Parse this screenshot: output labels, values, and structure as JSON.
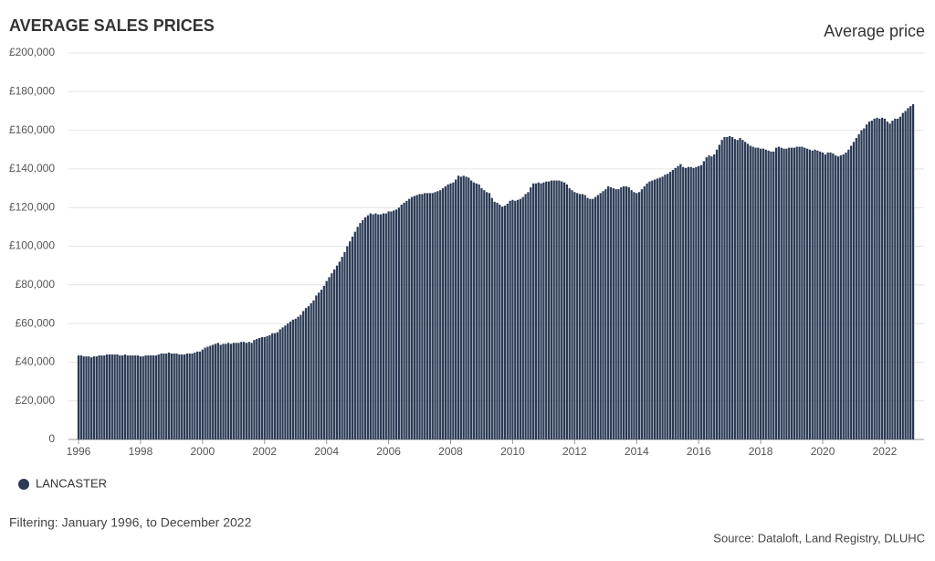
{
  "chart_data": {
    "type": "bar",
    "title": "AVERAGE SALES PRICES",
    "subtitle": "Average price",
    "filter_note": "Filtering: January 1996, to December 2022",
    "source": "Source: Dataloft, Land Registry, DLUHC",
    "color": "#2b3a55",
    "grid": true,
    "legend": "bottom-left",
    "ylim": [
      0,
      200000
    ],
    "yticks": [
      0,
      {
        "value": 20000,
        "label": "£20,000"
      },
      {
        "value": 40000,
        "label": "£40,000"
      },
      {
        "value": 60000,
        "label": "£60,000"
      },
      {
        "value": 80000,
        "label": "£80,000"
      },
      {
        "value": 100000,
        "label": "£100,000"
      },
      {
        "value": 120000,
        "label": "£120,000"
      },
      {
        "value": 140000,
        "label": "£140,000"
      },
      {
        "value": 160000,
        "label": "£160,000"
      },
      {
        "value": 180000,
        "label": "£180,000"
      },
      {
        "value": 200000,
        "label": "£200,000"
      }
    ],
    "categories": [
      "1996",
      null,
      null,
      null,
      null,
      null,
      null,
      null,
      null,
      null,
      null,
      null,
      null,
      null,
      null,
      null,
      null,
      null,
      null,
      null,
      null,
      null,
      null,
      null,
      "1998",
      null,
      null,
      null,
      null,
      null,
      null,
      null,
      null,
      null,
      null,
      null,
      null,
      null,
      null,
      null,
      null,
      null,
      null,
      null,
      null,
      null,
      null,
      null,
      "2000",
      null,
      null,
      null,
      null,
      null,
      null,
      null,
      null,
      null,
      null,
      null,
      null,
      null,
      null,
      null,
      null,
      null,
      null,
      null,
      null,
      null,
      null,
      null,
      "2002",
      null,
      null,
      null,
      null,
      null,
      null,
      null,
      null,
      null,
      null,
      null,
      null,
      null,
      null,
      null,
      null,
      null,
      null,
      null,
      null,
      null,
      null,
      null,
      "2004",
      null,
      null,
      null,
      null,
      null,
      null,
      null,
      null,
      null,
      null,
      null,
      null,
      null,
      null,
      null,
      null,
      null,
      null,
      null,
      null,
      null,
      null,
      null,
      "2006",
      null,
      null,
      null,
      null,
      null,
      null,
      null,
      null,
      null,
      null,
      null,
      null,
      null,
      null,
      null,
      null,
      null,
      null,
      null,
      null,
      null,
      null,
      null,
      "2008",
      null,
      null,
      null,
      null,
      null,
      null,
      null,
      null,
      null,
      null,
      null,
      null,
      null,
      null,
      null,
      null,
      null,
      null,
      null,
      null,
      null,
      null,
      null,
      "2010",
      null,
      null,
      null,
      null,
      null,
      null,
      null,
      null,
      null,
      null,
      null,
      null,
      null,
      null,
      null,
      null,
      null,
      null,
      null,
      null,
      null,
      null,
      null,
      "2012",
      null,
      null,
      null,
      null,
      null,
      null,
      null,
      null,
      null,
      null,
      null,
      null,
      null,
      null,
      null,
      null,
      null,
      null,
      null,
      null,
      null,
      null,
      null,
      "2014",
      null,
      null,
      null,
      null,
      null,
      null,
      null,
      null,
      null,
      null,
      null,
      null,
      null,
      null,
      null,
      null,
      null,
      null,
      null,
      null,
      null,
      null,
      null,
      "2016",
      null,
      null,
      null,
      null,
      null,
      null,
      null,
      null,
      null,
      null,
      null,
      null,
      null,
      null,
      null,
      null,
      null,
      null,
      null,
      null,
      null,
      null,
      null,
      "2018",
      null,
      null,
      null,
      null,
      null,
      null,
      null,
      null,
      null,
      null,
      null,
      null,
      null,
      null,
      null,
      null,
      null,
      null,
      null,
      null,
      null,
      null,
      null,
      "2020",
      null,
      null,
      null,
      null,
      null,
      null,
      null,
      null,
      null,
      null,
      null,
      null,
      null,
      null,
      null,
      null,
      null,
      null,
      null,
      null,
      null,
      null,
      null,
      "2022",
      null,
      null,
      null,
      null,
      null,
      null,
      null,
      null,
      null,
      null,
      null
    ],
    "series": [
      {
        "name": "LANCASTER",
        "color": "#2b3a55",
        "values": [
          43500,
          43500,
          43000,
          43000,
          43000,
          42500,
          43000,
          43000,
          43500,
          43500,
          43500,
          44000,
          44000,
          44000,
          44000,
          44000,
          43500,
          43500,
          44000,
          43500,
          43500,
          43500,
          43500,
          43500,
          43000,
          43000,
          43500,
          43500,
          43500,
          43500,
          43500,
          44000,
          44500,
          44500,
          44500,
          45000,
          44500,
          44500,
          44500,
          44000,
          44000,
          44000,
          44500,
          44500,
          44500,
          45000,
          45500,
          45500,
          46500,
          47500,
          48000,
          48500,
          49000,
          49500,
          50000,
          49000,
          49500,
          49500,
          50000,
          49500,
          50000,
          50000,
          50000,
          50500,
          50500,
          50000,
          50500,
          50000,
          51500,
          52000,
          52500,
          53000,
          53000,
          53500,
          54000,
          55000,
          55000,
          55500,
          57000,
          58000,
          59000,
          60000,
          61000,
          62000,
          62500,
          63500,
          64500,
          66500,
          68000,
          69000,
          70500,
          72000,
          74500,
          76000,
          77500,
          79500,
          82000,
          84000,
          86000,
          88000,
          90000,
          92000,
          94500,
          97000,
          100000,
          102500,
          105000,
          107500,
          110000,
          112000,
          113500,
          115000,
          116000,
          117000,
          116500,
          117000,
          116500,
          116500,
          117000,
          117000,
          118000,
          118000,
          118500,
          119000,
          120000,
          121500,
          122500,
          123500,
          124500,
          125500,
          126000,
          126500,
          127000,
          127000,
          127500,
          127500,
          127500,
          127500,
          128000,
          128500,
          129000,
          130000,
          131000,
          132000,
          132500,
          133000,
          134500,
          136500,
          136000,
          136500,
          136000,
          135500,
          134000,
          133000,
          132500,
          132000,
          130000,
          129000,
          128000,
          127500,
          125000,
          123000,
          122500,
          121500,
          120500,
          121000,
          122000,
          123500,
          124000,
          123500,
          124000,
          124500,
          125500,
          127000,
          128000,
          130500,
          132500,
          132500,
          133000,
          132500,
          133000,
          133500,
          133500,
          134000,
          134000,
          134000,
          134000,
          133500,
          133000,
          132000,
          130000,
          129000,
          128000,
          127500,
          127000,
          127000,
          126500,
          125000,
          124500,
          124500,
          125500,
          126500,
          127500,
          128500,
          129500,
          131000,
          130500,
          130000,
          129500,
          129500,
          130500,
          131000,
          131000,
          130500,
          129000,
          128000,
          127500,
          128000,
          129500,
          131000,
          132500,
          133500,
          134000,
          134500,
          135000,
          135500,
          136000,
          137000,
          137500,
          138500,
          139500,
          140500,
          141500,
          142500,
          141000,
          140500,
          141000,
          141000,
          140500,
          141000,
          141500,
          142000,
          144000,
          146000,
          147000,
          146500,
          147500,
          150000,
          152500,
          155000,
          156500,
          156500,
          157000,
          156500,
          155500,
          155000,
          156000,
          155000,
          154000,
          153000,
          152000,
          151500,
          151000,
          151000,
          150500,
          150500,
          150000,
          149500,
          149000,
          149000,
          151000,
          151500,
          151000,
          150500,
          150500,
          151000,
          151000,
          151000,
          151500,
          151500,
          151500,
          151000,
          150500,
          150000,
          149500,
          150000,
          149500,
          149000,
          148500,
          147500,
          148500,
          148500,
          148000,
          147000,
          146500,
          147000,
          147500,
          148500,
          150000,
          152000,
          154000,
          156000,
          158000,
          160000,
          161000,
          163000,
          164500,
          165000,
          166000,
          166500,
          166000,
          166500,
          166000,
          164500,
          163500,
          165000,
          166000,
          166000,
          167000,
          169000,
          170000,
          171500,
          172500,
          173500
        ]
      }
    ]
  }
}
